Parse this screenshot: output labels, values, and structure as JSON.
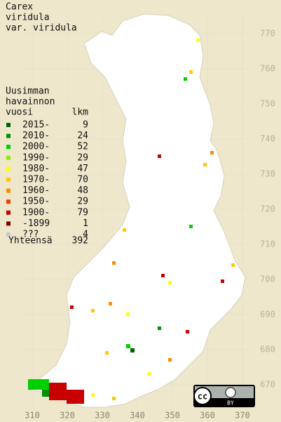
{
  "title": [
    "Carex",
    "viridula",
    "var. viridula"
  ],
  "legend": {
    "header": [
      "Uusimman",
      "havainnon",
      "vuosi"
    ],
    "count_header": "lkm",
    "entries": [
      {
        "label": "2015-",
        "count": "9",
        "color": "#006400"
      },
      {
        "label": "2010-",
        "count": "24",
        "color": "#009000"
      },
      {
        "label": "2000-",
        "count": "52",
        "color": "#00d000"
      },
      {
        "label": "1990-",
        "count": "29",
        "color": "#90ee00"
      },
      {
        "label": "1980-",
        "count": "47",
        "color": "#ffff00"
      },
      {
        "label": "1970-",
        "count": "70",
        "color": "#ffc800"
      },
      {
        "label": "1960-",
        "count": "48",
        "color": "#ff8c00"
      },
      {
        "label": "1950-",
        "count": "29",
        "color": "#e84000"
      },
      {
        "label": "1900-",
        "count": "79",
        "color": "#c80000"
      },
      {
        "label": "-1899",
        "count": "1",
        "color": "#800000"
      },
      {
        "label": "???",
        "count": "4",
        "color": "#c8c8c8"
      }
    ],
    "total_label": "Yhteensä",
    "total": "392"
  },
  "map": {
    "xticks": [
      310,
      320,
      330,
      340,
      350,
      360,
      370
    ],
    "yticks": [
      670,
      680,
      690,
      700,
      710,
      720,
      730,
      740,
      750,
      760,
      770
    ]
  },
  "license": {
    "badge": "cc",
    "by": "BY"
  }
}
